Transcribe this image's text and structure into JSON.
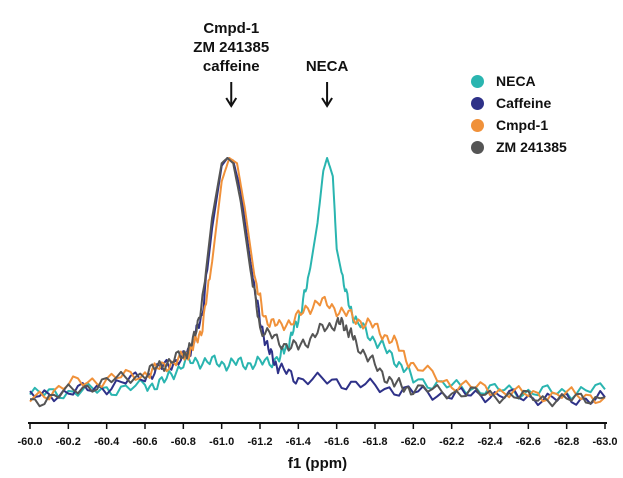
{
  "chart_data": {
    "type": "line",
    "xlabel": "f1 (ppm)",
    "ylabel": "",
    "title": "",
    "xlim": [
      -60.0,
      -63.0
    ],
    "x_reversed": true,
    "ticks": [
      "-60.0",
      "-60.2",
      "-60.4",
      "-60.6",
      "-60.8",
      "-61.0",
      "-61.2",
      "-61.4",
      "-61.6",
      "-61.8",
      "-62.0",
      "-62.2",
      "-62.4",
      "-62.6",
      "-62.8",
      "-63.0"
    ],
    "tick_values": [
      -60.0,
      -60.2,
      -60.4,
      -60.6,
      -60.8,
      -61.0,
      -61.2,
      -61.4,
      -61.6,
      -61.8,
      -62.0,
      -62.2,
      -62.4,
      -62.6,
      -62.8,
      -63.0
    ],
    "ylim": [
      0,
      1
    ],
    "y_axis_shown": false,
    "legend_position": "top-right",
    "annotations": [
      {
        "lines": [
          "Cmpd-1",
          "ZM 241385",
          "caffeine"
        ],
        "x": -61.05,
        "arrow": true
      },
      {
        "lines": [
          "NECA"
        ],
        "x": -61.55,
        "arrow": true
      }
    ],
    "series": [
      {
        "name": "NECA",
        "color": "#2ab5b0",
        "x": [
          -60.0,
          -60.2,
          -60.4,
          -60.6,
          -60.7,
          -60.8,
          -60.9,
          -61.0,
          -61.1,
          -61.2,
          -61.3,
          -61.35,
          -61.4,
          -61.45,
          -61.5,
          -61.53,
          -61.55,
          -61.58,
          -61.6,
          -61.65,
          -61.7,
          -61.8,
          -61.9,
          -62.0,
          -62.2,
          -62.4,
          -62.6,
          -62.8,
          -63.0
        ],
        "y": [
          0.04,
          0.05,
          0.06,
          0.07,
          0.09,
          0.16,
          0.17,
          0.16,
          0.16,
          0.16,
          0.18,
          0.24,
          0.33,
          0.47,
          0.7,
          0.9,
          0.95,
          0.88,
          0.6,
          0.42,
          0.32,
          0.25,
          0.18,
          0.1,
          0.07,
          0.06,
          0.05,
          0.05,
          0.06
        ]
      },
      {
        "name": "Caffeine",
        "color": "#2e3188",
        "x": [
          -60.0,
          -60.2,
          -60.4,
          -60.6,
          -60.7,
          -60.8,
          -60.85,
          -60.9,
          -60.95,
          -61.0,
          -61.03,
          -61.06,
          -61.1,
          -61.15,
          -61.2,
          -61.25,
          -61.3,
          -61.4,
          -61.6,
          -61.8,
          -62.0,
          -62.2,
          -62.4,
          -62.6,
          -62.8,
          -63.0
        ],
        "y": [
          0.03,
          0.05,
          0.07,
          0.11,
          0.15,
          0.18,
          0.23,
          0.36,
          0.68,
          0.92,
          0.95,
          0.94,
          0.82,
          0.55,
          0.32,
          0.2,
          0.14,
          0.1,
          0.09,
          0.07,
          0.05,
          0.04,
          0.04,
          0.03,
          0.02,
          0.03
        ]
      },
      {
        "name": "Cmpd-1",
        "color": "#f0913a",
        "x": [
          -60.0,
          -60.2,
          -60.4,
          -60.6,
          -60.7,
          -60.8,
          -60.85,
          -60.9,
          -60.95,
          -61.0,
          -61.04,
          -61.08,
          -61.12,
          -61.17,
          -61.22,
          -61.3,
          -61.4,
          -61.5,
          -61.6,
          -61.7,
          -61.8,
          -61.9,
          -62.0,
          -62.2,
          -62.4,
          -62.6,
          -62.8,
          -63.0
        ],
        "y": [
          0.02,
          0.08,
          0.1,
          0.12,
          0.15,
          0.18,
          0.22,
          0.3,
          0.55,
          0.86,
          0.95,
          0.93,
          0.76,
          0.5,
          0.34,
          0.3,
          0.34,
          0.4,
          0.37,
          0.33,
          0.3,
          0.24,
          0.15,
          0.08,
          0.06,
          0.04,
          0.04,
          0.03
        ]
      },
      {
        "name": "ZM 241385",
        "color": "#555555",
        "x": [
          -60.0,
          -60.2,
          -60.4,
          -60.6,
          -60.7,
          -60.8,
          -60.85,
          -60.9,
          -60.95,
          -61.0,
          -61.03,
          -61.06,
          -61.1,
          -61.15,
          -61.2,
          -61.3,
          -61.4,
          -61.5,
          -61.6,
          -61.65,
          -61.7,
          -61.8,
          -61.9,
          -62.0,
          -62.2,
          -62.4,
          -62.6,
          -62.8,
          -63.0
        ],
        "y": [
          0.01,
          0.05,
          0.09,
          0.12,
          0.16,
          0.19,
          0.24,
          0.4,
          0.72,
          0.93,
          0.95,
          0.93,
          0.78,
          0.52,
          0.3,
          0.24,
          0.22,
          0.28,
          0.32,
          0.3,
          0.24,
          0.15,
          0.08,
          0.06,
          0.05,
          0.04,
          0.03,
          0.02,
          0.03
        ]
      }
    ]
  }
}
